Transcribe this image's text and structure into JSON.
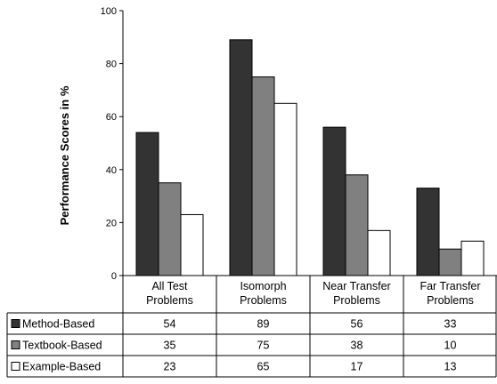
{
  "chart_data": {
    "type": "bar",
    "title": "",
    "xlabel": "",
    "ylabel": "Performance Scores in %",
    "ylim": [
      0,
      100
    ],
    "yticks": [
      "0",
      "20",
      "40",
      "60",
      "80",
      "100"
    ],
    "categories": [
      [
        "All Test",
        "Problems"
      ],
      [
        "Isomorph",
        "Problems"
      ],
      [
        "Near Transfer",
        "Problems"
      ],
      [
        "Far Transfer",
        "Problems"
      ]
    ],
    "series": [
      {
        "name": "Method-Based",
        "color": "#333333",
        "values": [
          54,
          89,
          56,
          33
        ]
      },
      {
        "name": "Textbook-Based",
        "color": "#808080",
        "values": [
          35,
          75,
          38,
          10
        ]
      },
      {
        "name": "Example-Based",
        "color": "#ffffff",
        "values": [
          23,
          65,
          17,
          13
        ]
      }
    ],
    "grid": false,
    "legend": "data-table-below"
  }
}
